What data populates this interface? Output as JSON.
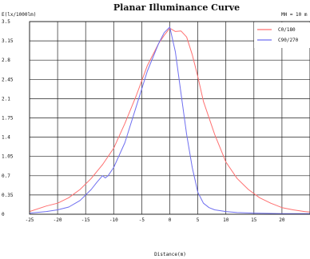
{
  "chart_data": {
    "type": "line",
    "title": "Planar Illuminance Curve",
    "ylabel": "E(lx/1000lm)",
    "xlabel": "Distance(m)",
    "annotation": "MH = 10 m",
    "xlim": [
      -25,
      25
    ],
    "ylim": [
      0,
      3.5
    ],
    "x_ticks": [
      "-25",
      "-20",
      "-15",
      "-10",
      "-5",
      "0",
      "5",
      "10",
      "15",
      "20"
    ],
    "y_ticks": [
      "0",
      "0.35",
      "0.7",
      "1.05",
      "1.4",
      "1.75",
      "2.1",
      "2.45",
      "2.8",
      "3.15",
      "3.5"
    ],
    "grid": true,
    "legend_position": "top-right",
    "series": [
      {
        "name": "C0/180",
        "color": "#ff7070",
        "x": [
          -25,
          -22,
          -20,
          -18,
          -16,
          -14,
          -12,
          -10,
          -8,
          -6,
          -4,
          -2,
          -1,
          0,
          1,
          2,
          3,
          4,
          5,
          6,
          8,
          10,
          12,
          14,
          16,
          18,
          20,
          22,
          24,
          25
        ],
        "y": [
          0.05,
          0.15,
          0.2,
          0.3,
          0.45,
          0.65,
          0.9,
          1.2,
          1.65,
          2.15,
          2.7,
          3.1,
          3.25,
          3.38,
          3.32,
          3.33,
          3.22,
          2.9,
          2.5,
          2.05,
          1.45,
          0.95,
          0.65,
          0.45,
          0.3,
          0.2,
          0.12,
          0.08,
          0.05,
          0.04
        ]
      },
      {
        "name": "C90/270",
        "color": "#6f6ff0",
        "x": [
          -25,
          -22,
          -20,
          -18,
          -16,
          -14,
          -13,
          -12,
          -11.5,
          -11,
          -10,
          -8,
          -6,
          -4,
          -2,
          -1,
          0,
          1,
          2,
          3,
          4,
          5,
          6,
          7,
          8,
          10,
          12,
          15,
          20,
          25
        ],
        "y": [
          0.02,
          0.05,
          0.08,
          0.13,
          0.25,
          0.45,
          0.58,
          0.7,
          0.66,
          0.7,
          0.85,
          1.3,
          1.95,
          2.6,
          3.1,
          3.3,
          3.4,
          2.95,
          2.2,
          1.45,
          0.85,
          0.4,
          0.2,
          0.12,
          0.08,
          0.05,
          0.03,
          0.02,
          0.01,
          0.01
        ]
      }
    ]
  }
}
